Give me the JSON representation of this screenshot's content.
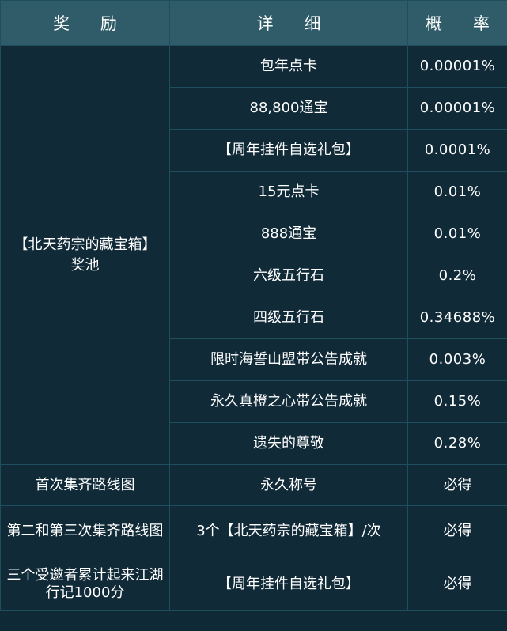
{
  "header": {
    "reward": "奖 励",
    "detail": "详 细",
    "probability": "概 率"
  },
  "pool": {
    "name": "【北天药宗的藏宝箱】奖池",
    "items": [
      {
        "detail": "包年点卡",
        "probability": "0.00001%"
      },
      {
        "detail": "88,800通宝",
        "probability": "0.00001%"
      },
      {
        "detail": "【周年挂件自选礼包】",
        "probability": "0.0001%"
      },
      {
        "detail": "15元点卡",
        "probability": "0.01%"
      },
      {
        "detail": "888通宝",
        "probability": "0.01%"
      },
      {
        "detail": "六级五行石",
        "probability": "0.2%"
      },
      {
        "detail": "四级五行石",
        "probability": "0.34688%"
      },
      {
        "detail": "限时海誓山盟带公告成就",
        "probability": "0.003%"
      },
      {
        "detail": "永久真橙之心带公告成就",
        "probability": "0.15%"
      },
      {
        "detail": "遗失的尊敬",
        "probability": "0.28%"
      }
    ]
  },
  "fixed_rewards": [
    {
      "reward": "首次集齐路线图",
      "detail": "永久称号",
      "probability": "必得"
    },
    {
      "reward": "第二和第三次集齐路线图",
      "detail": "3个【北天药宗的藏宝箱】/次",
      "probability": "必得"
    },
    {
      "reward": "三个受邀者累计起来江湖行记1000分",
      "detail": "【周年挂件自选礼包】",
      "probability": "必得"
    }
  ]
}
